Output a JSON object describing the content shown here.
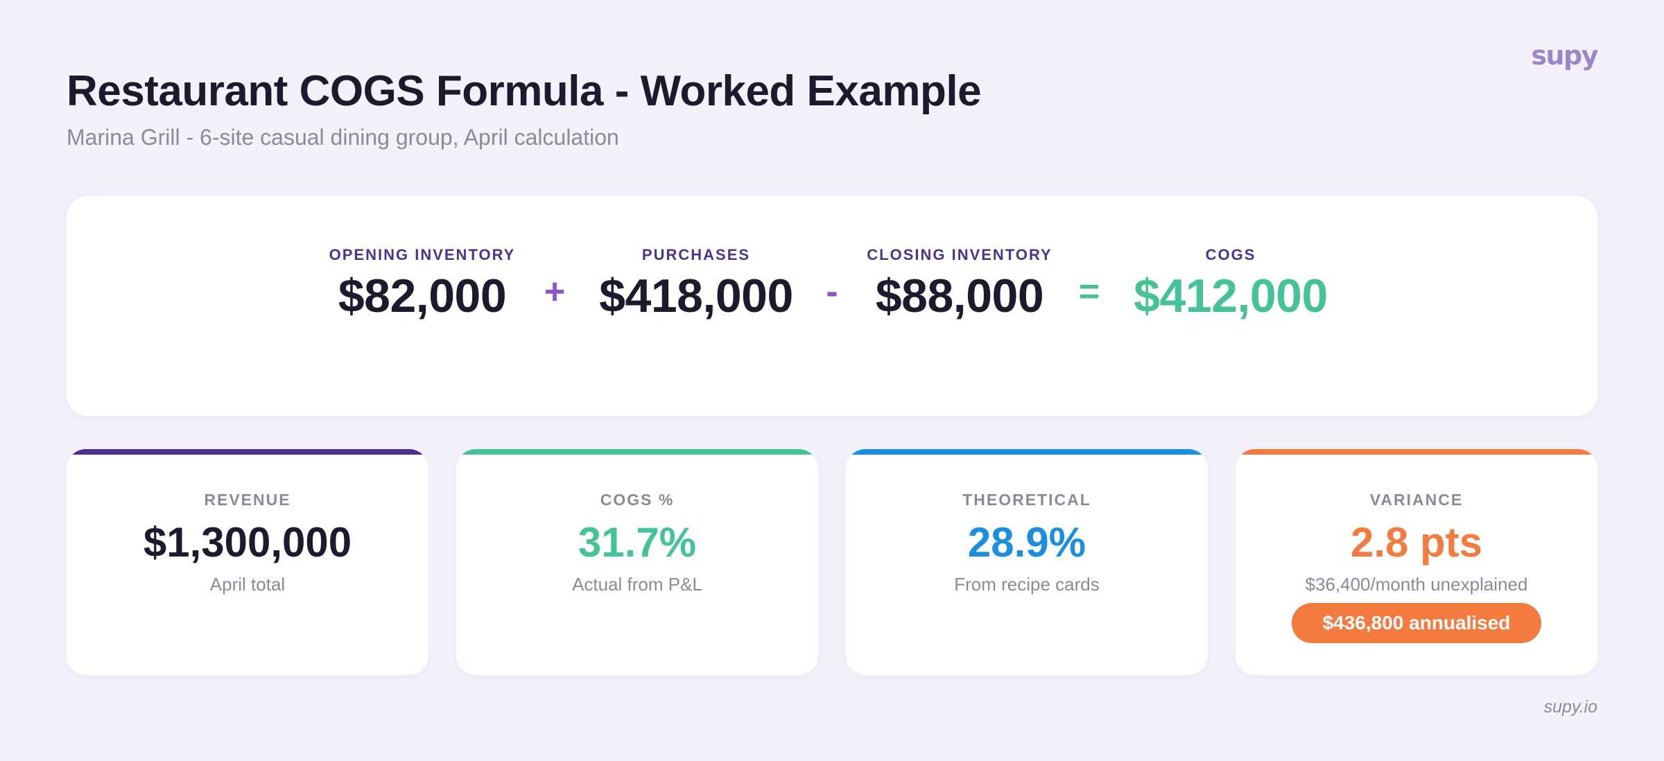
{
  "brand": {
    "logo": "supy",
    "footer": "supy.io"
  },
  "header": {
    "title": "Restaurant COGS Formula - Worked Example",
    "subtitle": "Marina Grill - 6-site casual dining group, April calculation"
  },
  "formula": {
    "terms": [
      {
        "label": "OPENING INVENTORY",
        "value": "$82,000"
      },
      {
        "label": "PURCHASES",
        "value": "$418,000"
      },
      {
        "label": "CLOSING INVENTORY",
        "value": "$88,000"
      },
      {
        "label": "COGS",
        "value": "$412,000"
      }
    ],
    "operators": [
      "+",
      "-",
      "="
    ]
  },
  "stats": [
    {
      "label": "REVENUE",
      "value": "$1,300,000",
      "note": "April total",
      "accent": "#4b2e8f"
    },
    {
      "label": "COGS %",
      "value": "31.7%",
      "note": "Actual from P&L",
      "accent": "#45c394"
    },
    {
      "label": "THEORETICAL",
      "value": "28.9%",
      "note": "From recipe cards",
      "accent": "#1a8fe0"
    },
    {
      "label": "VARIANCE",
      "value": "2.8 pts",
      "note": "$36,400/month unexplained",
      "badge": "$436,800 annualised",
      "accent": "#f47b3f"
    }
  ],
  "colors": {
    "background": "#f3f1fa",
    "dark_text": "#1c1b2e",
    "label_purple": "#4b3391",
    "operator_purple": "#8a56c9",
    "green": "#45c394",
    "blue": "#1a8fe0",
    "orange": "#f47b3f",
    "muted": "#8b8a96"
  }
}
